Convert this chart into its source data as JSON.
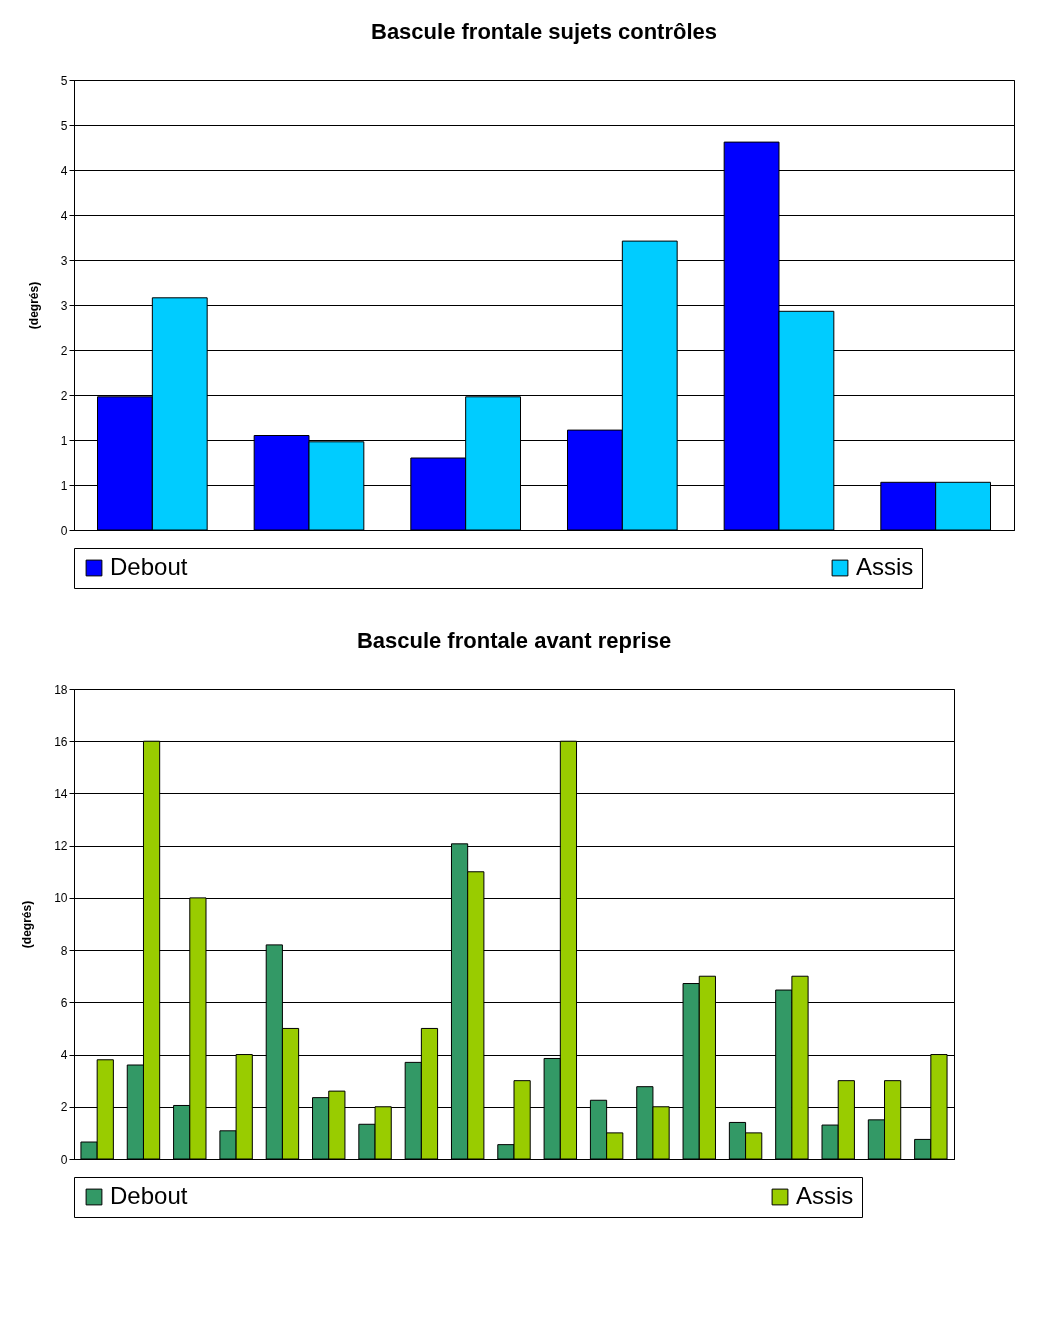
{
  "chart_data": [
    {
      "type": "bar",
      "title": "Bascule frontale sujets contrôles",
      "ylabel": "(degrés)",
      "categories": [
        null,
        null,
        null,
        null,
        null,
        null
      ],
      "series": [
        {
          "name": "Debout",
          "color": "#0000ff",
          "values": [
            1.48,
            1.05,
            0.8,
            1.11,
            4.31,
            0.53
          ]
        },
        {
          "name": "Assis",
          "color": "#00ccff",
          "values": [
            2.58,
            0.98,
            1.48,
            3.21,
            2.43,
            0.53
          ]
        }
      ],
      "ylim": [
        0,
        5
      ],
      "yticks": [
        0,
        {
          "value": 0.5,
          "label": "1"
        },
        1,
        {
          "value": 1.5,
          "label": "2"
        },
        2,
        {
          "value": 2.5,
          "label": "3"
        },
        3,
        {
          "value": 3.5,
          "label": "4"
        },
        4,
        {
          "value": 4.5,
          "label": "5"
        },
        5
      ],
      "grid": "y",
      "legend": "bottom",
      "tick_labels": "y"
    },
    {
      "type": "bar",
      "title": "Bascule frontale avant reprise",
      "ylabel": "(degrés)",
      "categories": [
        null,
        null,
        null,
        null,
        null,
        null,
        null,
        null,
        null,
        null,
        null,
        null,
        null,
        null,
        null,
        null,
        null,
        null,
        null
      ],
      "series": [
        {
          "name": "Debout",
          "color": "#339966",
          "values": [
            0.65,
            3.6,
            2.05,
            1.08,
            8.2,
            2.35,
            1.33,
            3.7,
            12.07,
            0.55,
            3.85,
            2.25,
            2.77,
            6.72,
            1.4,
            6.47,
            1.3,
            1.5,
            0.75
          ]
        },
        {
          "name": "Assis",
          "color": "#99cc00",
          "values": [
            3.8,
            16,
            10,
            4,
            5,
            2.6,
            2,
            5,
            11,
            3,
            16,
            1,
            2,
            7,
            1,
            7,
            3,
            3,
            4
          ]
        }
      ],
      "ylim": [
        0,
        18
      ],
      "yticks": [
        0,
        2,
        4,
        6,
        8,
        10,
        12,
        14,
        16,
        18
      ],
      "grid": "y",
      "legend": "bottom",
      "tick_labels": "y"
    }
  ]
}
